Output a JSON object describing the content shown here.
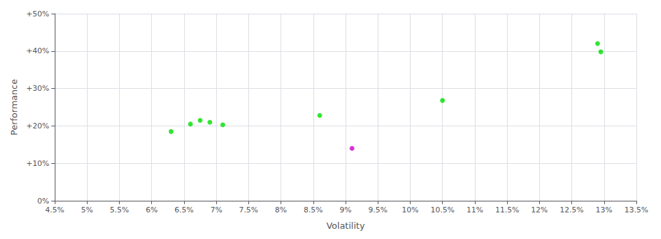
{
  "chart_data": {
    "type": "scatter",
    "xlabel": "Volatility",
    "ylabel": "Performance",
    "xlim": [
      0.045,
      0.135
    ],
    "ylim": [
      0.0,
      0.5
    ],
    "xticks": [
      {
        "value": 0.045,
        "label": "4.5%"
      },
      {
        "value": 0.05,
        "label": "5%"
      },
      {
        "value": 0.055,
        "label": "5.5%"
      },
      {
        "value": 0.06,
        "label": "6%"
      },
      {
        "value": 0.065,
        "label": "6.5%"
      },
      {
        "value": 0.07,
        "label": "7%"
      },
      {
        "value": 0.075,
        "label": "7.5%"
      },
      {
        "value": 0.08,
        "label": "8%"
      },
      {
        "value": 0.085,
        "label": "8.5%"
      },
      {
        "value": 0.09,
        "label": "9%"
      },
      {
        "value": 0.095,
        "label": "9.5%"
      },
      {
        "value": 0.1,
        "label": "10%"
      },
      {
        "value": 0.105,
        "label": "10.5%"
      },
      {
        "value": 0.11,
        "label": "11%"
      },
      {
        "value": 0.115,
        "label": "11.5%"
      },
      {
        "value": 0.12,
        "label": "12%"
      },
      {
        "value": 0.125,
        "label": "12.5%"
      },
      {
        "value": 0.13,
        "label": "13%"
      },
      {
        "value": 0.135,
        "label": "13.5%"
      }
    ],
    "yticks": [
      {
        "value": 0.0,
        "label": "0%"
      },
      {
        "value": 0.1,
        "label": "+10%"
      },
      {
        "value": 0.2,
        "label": "+20%"
      },
      {
        "value": 0.3,
        "label": "+30%"
      },
      {
        "value": 0.4,
        "label": "+40%"
      },
      {
        "value": 0.5,
        "label": "+50%"
      }
    ],
    "grid": true,
    "series": [
      {
        "color": "#00dd00",
        "x": [
          0.063,
          0.066,
          0.0675,
          0.069,
          0.071,
          0.086,
          0.105,
          0.129,
          0.1295
        ],
        "values": [
          0.185,
          0.205,
          0.215,
          0.21,
          0.203,
          0.228,
          0.268,
          0.42,
          0.398
        ]
      },
      {
        "color": "#cc00cc",
        "x": [
          0.091
        ],
        "values": [
          0.14
        ]
      }
    ]
  }
}
